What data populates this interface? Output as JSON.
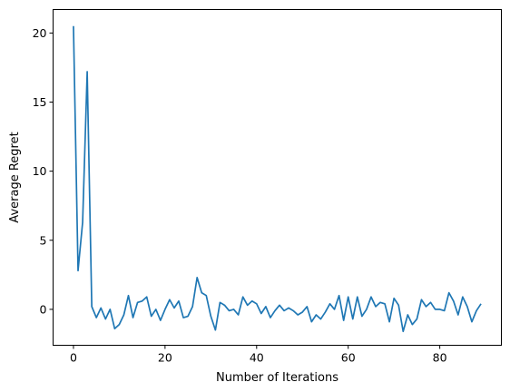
{
  "chart_data": {
    "type": "line",
    "title": "",
    "xlabel": "Number of Iterations",
    "ylabel": "Average Regret",
    "xlim": [
      -4.45,
      93.45
    ],
    "ylim": [
      -2.6,
      21.7
    ],
    "xticks": [
      0,
      20,
      40,
      60,
      80
    ],
    "yticks": [
      0,
      5,
      10,
      15,
      20
    ],
    "grid": false,
    "legend": "none",
    "line_color": "#1f77b4",
    "series": [
      {
        "x": [
          0,
          1,
          2,
          3,
          4,
          5,
          6,
          7,
          8,
          9,
          10,
          11,
          12,
          13,
          14,
          15,
          16,
          17,
          18,
          19,
          20,
          21,
          22,
          23,
          24,
          25,
          26,
          27,
          28,
          29,
          30,
          31,
          32,
          33,
          34,
          35,
          36,
          37,
          38,
          39,
          40,
          41,
          42,
          43,
          44,
          45,
          46,
          47,
          48,
          49,
          50,
          51,
          52,
          53,
          54,
          55,
          56,
          57,
          58,
          59,
          60,
          61,
          62,
          63,
          64,
          65,
          66,
          67,
          68,
          69,
          70,
          71,
          72,
          73,
          74,
          75,
          76,
          77,
          78,
          79,
          80,
          81,
          82,
          83,
          84,
          85,
          86,
          87,
          88,
          89
        ],
        "values": [
          20.5,
          2.8,
          6.3,
          17.2,
          0.2,
          -0.6,
          0.1,
          -0.7,
          0.0,
          -1.4,
          -1.1,
          -0.4,
          1.0,
          -0.6,
          0.5,
          0.6,
          0.9,
          -0.5,
          0.0,
          -0.8,
          0.0,
          0.7,
          0.1,
          0.6,
          -0.6,
          -0.5,
          0.2,
          2.3,
          1.2,
          1.0,
          -0.5,
          -1.5,
          0.5,
          0.3,
          -0.1,
          0.0,
          -0.4,
          0.9,
          0.3,
          0.6,
          0.4,
          -0.3,
          0.2,
          -0.6,
          -0.1,
          0.3,
          -0.1,
          0.1,
          -0.1,
          -0.4,
          -0.2,
          0.2,
          -0.9,
          -0.4,
          -0.7,
          -0.2,
          0.4,
          0.0,
          1.0,
          -0.8,
          0.9,
          -0.7,
          0.9,
          -0.5,
          0.0,
          0.9,
          0.2,
          0.5,
          0.4,
          -0.9,
          0.8,
          0.3,
          -1.6,
          -0.4,
          -1.1,
          -0.7,
          0.7,
          0.2,
          0.5,
          0.0,
          0.0,
          -0.1,
          1.2,
          0.6,
          -0.4,
          0.9,
          0.2,
          -0.9,
          -0.1,
          0.4
        ]
      }
    ]
  }
}
